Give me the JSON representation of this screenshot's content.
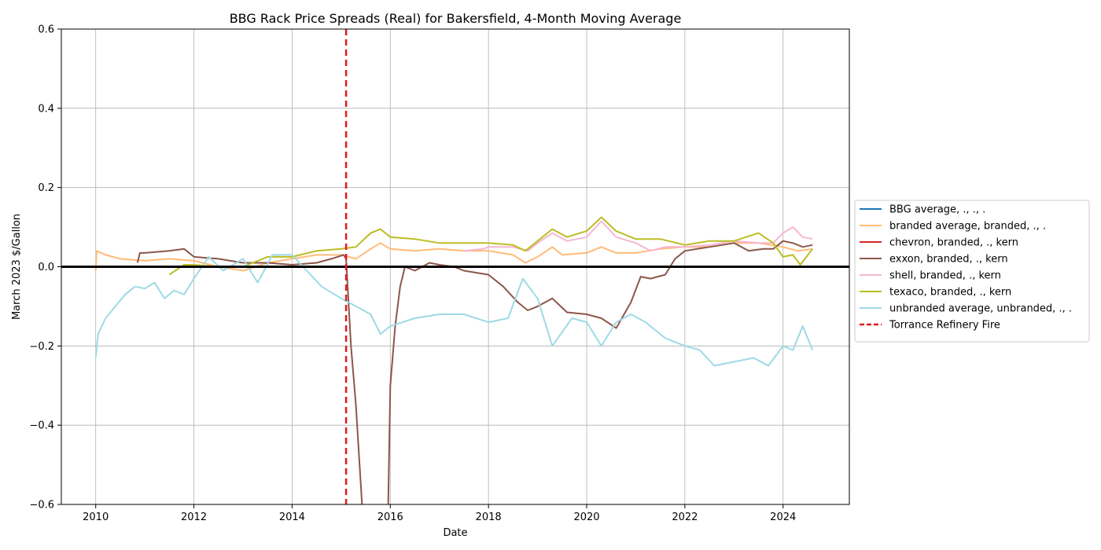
{
  "chart_data": {
    "type": "line",
    "title": "BBG Rack Price Spreads (Real) for Bakersfield, 4-Month Moving Average",
    "xlabel": "Date",
    "ylabel": "March 2023 $/Gallon",
    "xlim": [
      2009.3,
      2025.35
    ],
    "ylim": [
      -0.6,
      0.6
    ],
    "x_ticks": [
      2010,
      2012,
      2014,
      2016,
      2018,
      2020,
      2022,
      2024
    ],
    "y_ticks": [
      -0.6,
      -0.4,
      -0.2,
      0.0,
      0.2,
      0.4,
      0.6
    ],
    "y_tick_labels": [
      "−0.6",
      "−0.4",
      "−0.2",
      "0.0",
      "0.2",
      "0.4",
      "0.6"
    ],
    "grid": true,
    "legend_position": "outside-right",
    "zero_line": {
      "y": 0.0,
      "color": "#000000"
    },
    "event_line": {
      "x": 2015.1,
      "name": "Torrance Refinery Fire",
      "color": "#e31a1c",
      "style": "dashed"
    },
    "series": [
      {
        "name": "BBG average, ., ., .",
        "color": "#1f77b4",
        "x": [],
        "y": []
      },
      {
        "name": "branded average, branded, ., .",
        "color": "#ffbb78",
        "x": [
          2010.0,
          2010.02,
          2010.2,
          2010.5,
          2011.0,
          2011.5,
          2012.0,
          2012.5,
          2013.0,
          2013.5,
          2014.0,
          2014.5,
          2015.0,
          2015.3,
          2015.6,
          2015.8,
          2016.0,
          2016.5,
          2017.0,
          2017.5,
          2018.0,
          2018.5,
          2018.75,
          2019.0,
          2019.3,
          2019.5,
          2020.0,
          2020.3,
          2020.6,
          2021.0,
          2021.5,
          2022.0,
          2022.5,
          2023.0,
          2023.5,
          2024.0,
          2024.3,
          2024.6
        ],
        "y": [
          -0.01,
          0.04,
          0.03,
          0.02,
          0.015,
          0.02,
          0.015,
          0.0,
          -0.01,
          0.01,
          0.02,
          0.03,
          0.03,
          0.02,
          0.045,
          0.06,
          0.045,
          0.04,
          0.045,
          0.04,
          0.04,
          0.03,
          0.01,
          0.025,
          0.05,
          0.03,
          0.035,
          0.05,
          0.035,
          0.035,
          0.045,
          0.05,
          0.05,
          0.06,
          0.06,
          0.05,
          0.04,
          0.045
        ]
      },
      {
        "name": "chevron, branded, ., kern",
        "color": "#d62728",
        "x": [],
        "y": []
      },
      {
        "name": "exxon, branded, ., kern",
        "color": "#8c564b",
        "x": [
          2010.85,
          2010.9,
          2011.0,
          2011.5,
          2011.8,
          2012.0,
          2012.5,
          2013.0,
          2013.5,
          2014.0,
          2014.5,
          2014.8,
          2015.05,
          2015.1,
          2015.2,
          2015.3,
          2015.4,
          2015.45,
          2015.95,
          2016.0,
          2016.1,
          2016.2,
          2016.3,
          2016.5,
          2016.8,
          2017.0,
          2017.3,
          2017.5,
          2018.0,
          2018.3,
          2018.6,
          2018.8,
          2019.0,
          2019.3,
          2019.6,
          2020.0,
          2020.3,
          2020.6,
          2020.9,
          2021.1,
          2021.3,
          2021.6,
          2021.8,
          2022.0,
          2022.5,
          2023.0,
          2023.3,
          2023.6,
          2023.8,
          2024.0,
          2024.2,
          2024.4,
          2024.6
        ],
        "y": [
          0.01,
          0.035,
          0.035,
          0.04,
          0.045,
          0.025,
          0.02,
          0.01,
          0.01,
          0.005,
          0.01,
          0.02,
          0.03,
          0.02,
          -0.2,
          -0.35,
          -0.55,
          -0.65,
          -0.65,
          -0.3,
          -0.15,
          -0.05,
          0.0,
          -0.01,
          0.01,
          0.005,
          0.0,
          -0.01,
          -0.02,
          -0.05,
          -0.09,
          -0.11,
          -0.1,
          -0.08,
          -0.115,
          -0.12,
          -0.13,
          -0.155,
          -0.09,
          -0.025,
          -0.03,
          -0.02,
          0.02,
          0.04,
          0.05,
          0.06,
          0.04,
          0.045,
          0.045,
          0.065,
          0.06,
          0.05,
          0.055
        ]
      },
      {
        "name": "shell, branded, ., kern",
        "color": "#f7b6d2",
        "x": [
          2017.5,
          2017.9,
          2018.0,
          2018.5,
          2018.8,
          2019.0,
          2019.3,
          2019.6,
          2020.0,
          2020.3,
          2020.6,
          2021.0,
          2021.3,
          2021.6,
          2022.0,
          2022.5,
          2023.0,
          2023.5,
          2023.8,
          2024.0,
          2024.2,
          2024.4,
          2024.6
        ],
        "y": [
          0.04,
          0.045,
          0.05,
          0.05,
          0.04,
          0.06,
          0.085,
          0.065,
          0.075,
          0.115,
          0.075,
          0.06,
          0.04,
          0.05,
          0.05,
          0.055,
          0.065,
          0.06,
          0.06,
          0.085,
          0.1,
          0.075,
          0.07
        ]
      },
      {
        "name": "texaco, branded, ., kern",
        "color": "#bcbd22",
        "x": [
          2011.5,
          2011.8,
          2012.0,
          2012.5,
          2013.0,
          2013.5,
          2014.0,
          2014.5,
          2015.0,
          2015.3,
          2015.6,
          2015.8,
          2016.0,
          2016.5,
          2017.0,
          2017.5,
          2018.0,
          2018.5,
          2018.75,
          2019.0,
          2019.3,
          2019.6,
          2020.0,
          2020.3,
          2020.6,
          2021.0,
          2021.5,
          2022.0,
          2022.5,
          2023.0,
          2023.5,
          2023.8,
          2024.0,
          2024.2,
          2024.35,
          2024.6
        ],
        "y": [
          -0.02,
          0.005,
          0.005,
          0.0,
          0.0,
          0.025,
          0.025,
          0.04,
          0.045,
          0.05,
          0.085,
          0.095,
          0.075,
          0.07,
          0.06,
          0.06,
          0.06,
          0.055,
          0.04,
          0.065,
          0.095,
          0.075,
          0.09,
          0.125,
          0.09,
          0.07,
          0.07,
          0.055,
          0.065,
          0.065,
          0.085,
          0.06,
          0.025,
          0.03,
          0.005,
          0.045
        ]
      },
      {
        "name": "unbranded average, unbranded, ., .",
        "color": "#9edae5",
        "x": [
          2010.0,
          2010.05,
          2010.2,
          2010.4,
          2010.6,
          2010.8,
          2011.0,
          2011.2,
          2011.4,
          2011.6,
          2011.8,
          2012.0,
          2012.3,
          2012.6,
          2013.0,
          2013.3,
          2013.6,
          2014.0,
          2014.3,
          2014.6,
          2015.0,
          2015.3,
          2015.6,
          2015.8,
          2016.0,
          2016.5,
          2017.0,
          2017.5,
          2018.0,
          2018.4,
          2018.7,
          2019.0,
          2019.3,
          2019.7,
          2020.0,
          2020.3,
          2020.6,
          2020.9,
          2021.2,
          2021.6,
          2022.0,
          2022.3,
          2022.6,
          2023.0,
          2023.4,
          2023.7,
          2024.0,
          2024.2,
          2024.4,
          2024.6
        ],
        "y": [
          -0.23,
          -0.17,
          -0.13,
          -0.1,
          -0.07,
          -0.05,
          -0.055,
          -0.04,
          -0.08,
          -0.06,
          -0.07,
          -0.03,
          0.025,
          -0.01,
          0.02,
          -0.04,
          0.03,
          0.03,
          -0.01,
          -0.05,
          -0.08,
          -0.1,
          -0.12,
          -0.17,
          -0.15,
          -0.13,
          -0.12,
          -0.12,
          -0.14,
          -0.13,
          -0.03,
          -0.08,
          -0.2,
          -0.13,
          -0.14,
          -0.2,
          -0.14,
          -0.12,
          -0.14,
          -0.18,
          -0.2,
          -0.21,
          -0.25,
          -0.24,
          -0.23,
          -0.25,
          -0.2,
          -0.21,
          -0.15,
          -0.21
        ]
      }
    ]
  }
}
